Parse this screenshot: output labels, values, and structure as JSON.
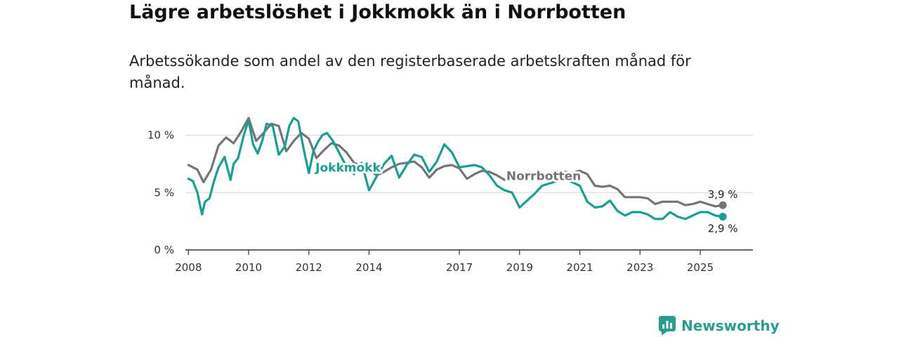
{
  "header": {
    "title": "Lägre arbetslöshet i Jokkmokk än i Norrbotten",
    "subtitle": "Arbetssökande som andel av den registerbaserade arbetskraften månad för månad."
  },
  "brand": {
    "name": "Newsworthy",
    "icon": "newsworthy-logo-icon",
    "color": "#2a9d8f"
  },
  "chart_data": {
    "type": "line",
    "title": "Lägre arbetslöshet i Jokkmokk än i Norrbotten",
    "subtitle": "Arbetssökande som andel av den registerbaserade arbetskraften månad för månad.",
    "xlabel": "",
    "ylabel": "",
    "xlim": [
      2007.9,
      2026.75
    ],
    "ylim": [
      0,
      11.5
    ],
    "grid": true,
    "x_ticks": [
      {
        "value": 2008,
        "label": "2008"
      },
      {
        "value": 2010,
        "label": "2010"
      },
      {
        "value": 2012,
        "label": "2012"
      },
      {
        "value": 2014,
        "label": "2014"
      },
      {
        "value": 2017,
        "label": "2017"
      },
      {
        "value": 2019,
        "label": "2019"
      },
      {
        "value": 2021,
        "label": "2021"
      },
      {
        "value": 2023,
        "label": "2023"
      },
      {
        "value": 2025,
        "label": "2025"
      }
    ],
    "y_ticks": [
      {
        "value": 0,
        "label": "0 %"
      },
      {
        "value": 5,
        "label": "5 %"
      },
      {
        "value": 10,
        "label": "10 %"
      }
    ],
    "series": [
      {
        "name": "Norrbotten",
        "color": "#76747a",
        "label_at": 2019.8,
        "end_label": "3,9 %",
        "x": [
          2008.0,
          2008.3,
          2008.5,
          2008.75,
          2009.0,
          2009.25,
          2009.5,
          2009.75,
          2010.0,
          2010.25,
          2010.5,
          2010.75,
          2011.0,
          2011.25,
          2011.5,
          2011.75,
          2012.0,
          2012.25,
          2012.5,
          2012.75,
          2013.0,
          2013.25,
          2013.5,
          2013.75,
          2014.0,
          2014.25,
          2014.5,
          2014.75,
          2015.0,
          2015.25,
          2015.5,
          2015.75,
          2016.0,
          2016.25,
          2016.5,
          2016.75,
          2017.0,
          2017.25,
          2017.5,
          2017.75,
          2018.0,
          2018.25,
          2018.5,
          2018.75,
          2019.0,
          2019.25,
          2019.5,
          2019.75,
          2020.0,
          2020.25,
          2020.5,
          2020.75,
          2021.0,
          2021.25,
          2021.5,
          2021.75,
          2022.0,
          2022.25,
          2022.5,
          2022.75,
          2023.0,
          2023.25,
          2023.5,
          2023.75,
          2024.0,
          2024.25,
          2024.5,
          2024.75,
          2025.0,
          2025.25,
          2025.5,
          2025.75
        ],
        "y": [
          7.4,
          7.0,
          5.9,
          7.0,
          9.1,
          9.8,
          9.3,
          10.3,
          11.5,
          9.5,
          10.2,
          11.0,
          10.8,
          8.6,
          9.5,
          10.2,
          9.7,
          8.0,
          8.7,
          9.3,
          9.1,
          8.5,
          7.6,
          7.3,
          7.0,
          6.5,
          6.8,
          7.2,
          7.5,
          7.6,
          7.7,
          7.2,
          6.3,
          7.0,
          7.3,
          7.4,
          7.1,
          6.2,
          6.6,
          6.9,
          6.8,
          6.5,
          6.1,
          6.2,
          6.4,
          6.4,
          6.5,
          6.4,
          6.6,
          6.7,
          6.8,
          6.7,
          6.9,
          6.6,
          5.6,
          5.5,
          5.6,
          5.3,
          4.6,
          4.6,
          4.6,
          4.5,
          4.0,
          4.2,
          4.2,
          4.2,
          3.9,
          4.0,
          4.2,
          4.0,
          3.8,
          3.9
        ]
      },
      {
        "name": "Jokkmokk",
        "color": "#17a091",
        "label_at": 2013.3,
        "end_label": "2,9 %",
        "x": [
          2008.0,
          2008.15,
          2008.3,
          2008.45,
          2008.55,
          2008.7,
          2008.85,
          2009.0,
          2009.2,
          2009.4,
          2009.5,
          2009.65,
          2009.85,
          2010.0,
          2010.15,
          2010.3,
          2010.45,
          2010.6,
          2010.8,
          2011.0,
          2011.2,
          2011.35,
          2011.5,
          2011.65,
          2011.85,
          2012.0,
          2012.15,
          2012.3,
          2012.45,
          2012.6,
          2012.8,
          2013.0,
          2013.2,
          2013.5,
          2013.75,
          2014.0,
          2014.25,
          2014.5,
          2014.75,
          2015.0,
          2015.25,
          2015.5,
          2015.75,
          2016.0,
          2016.25,
          2016.5,
          2016.75,
          2017.0,
          2017.25,
          2017.5,
          2017.75,
          2018.0,
          2018.25,
          2018.5,
          2018.75,
          2019.0,
          2019.25,
          2019.5,
          2019.75,
          2020.0,
          2020.25,
          2020.5,
          2020.75,
          2021.0,
          2021.25,
          2021.5,
          2021.75,
          2022.0,
          2022.25,
          2022.5,
          2022.75,
          2023.0,
          2023.25,
          2023.5,
          2023.75,
          2024.0,
          2024.25,
          2024.5,
          2024.75,
          2025.0,
          2025.25,
          2025.5,
          2025.75
        ],
        "y": [
          6.2,
          6.0,
          5.0,
          3.1,
          4.2,
          4.5,
          6.0,
          7.2,
          8.1,
          6.1,
          7.5,
          8.0,
          10.1,
          11.3,
          9.2,
          8.4,
          9.5,
          11.0,
          10.8,
          8.3,
          9.0,
          10.8,
          11.5,
          11.2,
          8.5,
          6.7,
          8.6,
          9.4,
          10.0,
          10.2,
          9.5,
          8.5,
          7.5,
          6.6,
          7.6,
          5.2,
          6.4,
          7.5,
          8.2,
          6.3,
          7.4,
          8.3,
          8.1,
          6.8,
          7.7,
          9.2,
          8.5,
          7.2,
          7.3,
          7.4,
          7.2,
          6.5,
          5.6,
          5.2,
          5.0,
          3.7,
          4.3,
          4.9,
          5.6,
          5.8,
          6.0,
          6.2,
          5.9,
          5.6,
          4.2,
          3.7,
          3.8,
          4.3,
          3.4,
          3.0,
          3.3,
          3.3,
          3.1,
          2.7,
          2.7,
          3.3,
          2.9,
          2.7,
          3.0,
          3.3,
          3.3,
          3.0,
          2.9
        ]
      }
    ]
  }
}
